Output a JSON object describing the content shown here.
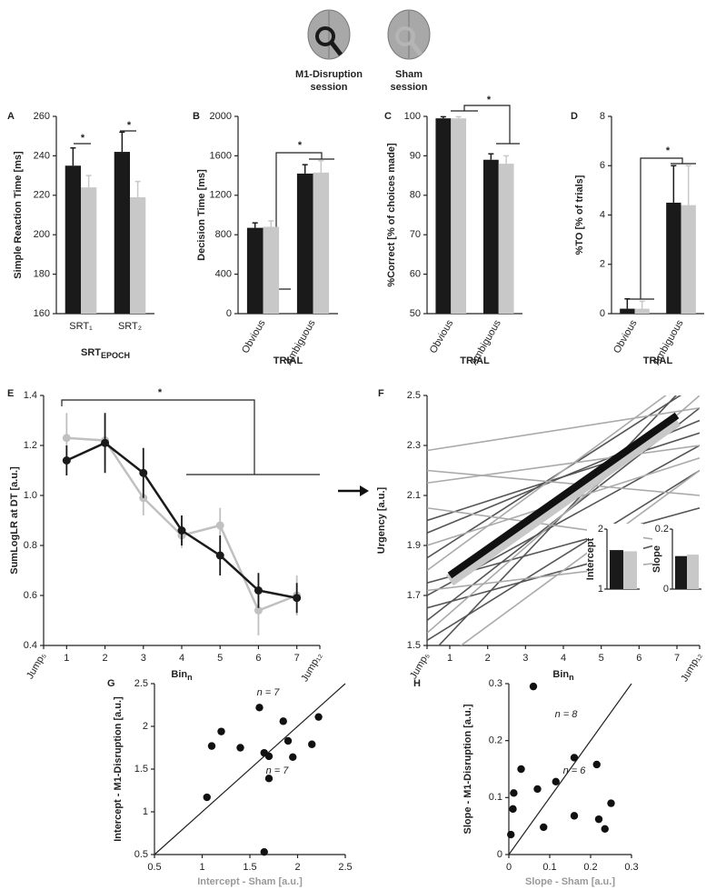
{
  "legend": {
    "items": [
      {
        "label_lines": [
          "M1-Disruption",
          "session"
        ],
        "color": "#1a1a1a"
      },
      {
        "label_lines": [
          "Sham",
          "session"
        ],
        "color": "#b5b5b5"
      }
    ]
  },
  "chart_data": [
    {
      "panel": "A",
      "type": "bar",
      "ylabel": "Simple Reaction Time [ms]",
      "xlabel": "SRT",
      "xlabel_sub": "EPOCH",
      "categories": [
        "SRT₁",
        "SRT₂"
      ],
      "ylim": [
        160,
        260
      ],
      "yticks": [
        160,
        180,
        200,
        220,
        240,
        260
      ],
      "series": [
        {
          "color": "#1a1a1a",
          "values": [
            235,
            242
          ],
          "errors": [
            9,
            10
          ]
        },
        {
          "color": "#c8c8c8",
          "values": [
            224,
            219
          ],
          "errors": [
            6,
            8
          ]
        }
      ],
      "annotations": [
        "*",
        "*"
      ]
    },
    {
      "panel": "B",
      "type": "bar",
      "ylabel": "Decision Time [ms]",
      "xlabel": "TRIAL",
      "categories": [
        "Obvious",
        "Ambiguous"
      ],
      "ylim": [
        0,
        2000
      ],
      "yticks": [
        0,
        400,
        800,
        1200,
        1600,
        2000
      ],
      "series": [
        {
          "color": "#1a1a1a",
          "values": [
            870,
            1420
          ],
          "errors": [
            50,
            90
          ]
        },
        {
          "color": "#c8c8c8",
          "values": [
            880,
            1430
          ],
          "errors": [
            60,
            120
          ]
        }
      ],
      "annotations": [
        "*"
      ]
    },
    {
      "panel": "C",
      "type": "bar",
      "ylabel": "%Correct [% of choices made]",
      "xlabel": "TRIAL",
      "categories": [
        "Obvious",
        "Ambiguous"
      ],
      "ylim": [
        50,
        100
      ],
      "yticks": [
        50,
        60,
        70,
        80,
        90,
        100
      ],
      "series": [
        {
          "color": "#1a1a1a",
          "values": [
            99.5,
            89
          ],
          "errors": [
            0.4,
            1.5
          ]
        },
        {
          "color": "#c8c8c8",
          "values": [
            99.5,
            88
          ],
          "errors": [
            0.4,
            2
          ]
        }
      ],
      "annotations": [
        "*"
      ]
    },
    {
      "panel": "D",
      "type": "bar",
      "ylabel": "%TO [% of trials]",
      "xlabel": "TRIAL",
      "categories": [
        "Obvious",
        "Ambiguous"
      ],
      "ylim": [
        0,
        8
      ],
      "yticks": [
        0,
        2,
        4,
        6,
        8
      ],
      "series": [
        {
          "color": "#1a1a1a",
          "values": [
            0.2,
            4.5
          ],
          "errors": [
            0.4,
            1.5
          ]
        },
        {
          "color": "#c8c8c8",
          "values": [
            0.2,
            4.4
          ],
          "errors": [
            0.3,
            1.6
          ]
        }
      ],
      "annotations": [
        "*"
      ]
    },
    {
      "panel": "E",
      "type": "line",
      "ylabel": "SumLogLR at DT [a.u.]",
      "xlabel": "Bin",
      "xlabel_sub": "n",
      "x": [
        1,
        2,
        3,
        4,
        5,
        6,
        7
      ],
      "xlim": [
        0.4,
        7.6
      ],
      "xticks": [
        {
          "value": 0.4,
          "label": "Jump₅"
        },
        1,
        2,
        3,
        4,
        5,
        6,
        7,
        {
          "value": 7.6,
          "label": "Jump₁₂"
        }
      ],
      "ylim": [
        0.4,
        1.4
      ],
      "yticks": [
        0.4,
        0.6,
        0.8,
        {
          "value": 1,
          "label": "1.0"
        },
        1.2,
        1.4
      ],
      "series": [
        {
          "color": "#1a1a1a",
          "values": [
            1.14,
            1.21,
            1.09,
            0.86,
            0.76,
            0.62,
            0.59
          ],
          "errors": [
            0.06,
            0.12,
            0.1,
            0.06,
            0.08,
            0.07,
            0.06
          ]
        },
        {
          "color": "#c0c0c0",
          "values": [
            1.23,
            1.22,
            0.99,
            0.84,
            0.88,
            0.54,
            0.6
          ],
          "errors": [
            0.1,
            0.1,
            0.07,
            0.05,
            0.07,
            0.1,
            0.08
          ]
        }
      ],
      "annotations": [
        "*"
      ]
    },
    {
      "panel": "F",
      "type": "lines",
      "ylabel": "Urgency [a.u.]",
      "xlabel": "Bin",
      "xlabel_sub": "n",
      "xlim": [
        0.4,
        7.6
      ],
      "xticks": [
        {
          "value": 0.4,
          "label": "Jump₅"
        },
        1,
        2,
        3,
        4,
        5,
        6,
        7,
        {
          "value": 7.6,
          "label": "Jump₁₂"
        }
      ],
      "ylim": [
        1.5,
        2.5
      ],
      "yticks": [
        1.5,
        1.7,
        1.9,
        2.1,
        2.3,
        2.5
      ],
      "subject_x": [
        0.4,
        7.6
      ],
      "subjects": [
        {
          "color": "#555555",
          "values": [
            1.6,
            2.45
          ]
        },
        {
          "color": "#555555",
          "values": [
            1.7,
            2.3
          ]
        },
        {
          "color": "#555555",
          "values": [
            1.85,
            2.55
          ]
        },
        {
          "color": "#555555",
          "values": [
            1.52,
            2.2
          ]
        },
        {
          "color": "#555555",
          "values": [
            1.95,
            2.4
          ]
        },
        {
          "color": "#555555",
          "values": [
            1.45,
            2.6
          ]
        },
        {
          "color": "#555555",
          "values": [
            1.75,
            2.05
          ]
        },
        {
          "color": "#555555",
          "values": [
            2.0,
            2.35
          ]
        },
        {
          "color": "#555555",
          "values": [
            1.65,
            1.95
          ]
        },
        {
          "color": "#aaaaaa",
          "values": [
            2.28,
            2.45
          ]
        },
        {
          "color": "#aaaaaa",
          "values": [
            2.2,
            2.1
          ]
        },
        {
          "color": "#aaaaaa",
          "values": [
            1.9,
            2.25
          ]
        },
        {
          "color": "#aaaaaa",
          "values": [
            1.55,
            2.5
          ]
        },
        {
          "color": "#aaaaaa",
          "values": [
            2.05,
            1.9
          ]
        },
        {
          "color": "#aaaaaa",
          "values": [
            1.8,
            2.6
          ]
        },
        {
          "color": "#aaaaaa",
          "values": [
            1.72,
            1.85
          ]
        },
        {
          "color": "#aaaaaa",
          "values": [
            2.15,
            2.3
          ]
        },
        {
          "color": "#aaaaaa",
          "values": [
            1.4,
            2.2
          ]
        }
      ],
      "x": [
        1,
        7
      ],
      "series": [
        {
          "color": "#c8c8c8",
          "values": [
            1.76,
            2.4
          ]
        },
        {
          "color": "#111111",
          "values": [
            1.78,
            2.42
          ]
        }
      ],
      "insets": [
        {
          "ylabel": "Intercept",
          "ylim": [
            1,
            2
          ],
          "yticks": [
            1,
            2
          ],
          "values": [
            1.65,
            1.63
          ],
          "colors": [
            "#1a1a1a",
            "#c8c8c8"
          ]
        },
        {
          "ylabel": "Slope",
          "ylim": [
            0,
            0.2
          ],
          "yticks": [
            0,
            0.2
          ],
          "values": [
            0.11,
            0.115
          ],
          "colors": [
            "#1a1a1a",
            "#c8c8c8"
          ]
        }
      ]
    },
    {
      "panel": "G",
      "type": "scatter",
      "ylabel": "Intercept - M1-Disruption [a.u.]",
      "xlabel": "Intercept - Sham [a.u.]",
      "xlim": [
        0.5,
        2.5
      ],
      "xticks": [
        0.5,
        1,
        1.5,
        2,
        2.5
      ],
      "ylim": [
        0.5,
        2.5
      ],
      "yticks": [
        0.5,
        1,
        1.5,
        2,
        2.5
      ],
      "x": [
        1.05,
        1.1,
        1.2,
        1.4,
        1.6,
        1.65,
        1.7,
        1.7,
        1.85,
        1.9,
        1.95,
        2.15,
        2.22,
        1.65
      ],
      "values": [
        1.17,
        1.77,
        1.94,
        1.75,
        2.22,
        1.69,
        1.65,
        1.39,
        2.06,
        1.83,
        1.64,
        1.79,
        2.11,
        0.53
      ],
      "color": "#111111",
      "annotations": [
        "n = 7",
        "n = 7"
      ]
    },
    {
      "panel": "H",
      "type": "scatter",
      "ylabel": "Slope - M1-Disruption [a.u.]",
      "xlabel": "Slope - Sham [a.u.]",
      "xlim": [
        0,
        0.3
      ],
      "xticks": [
        0,
        0.1,
        0.2,
        0.3
      ],
      "ylim": [
        0,
        0.3
      ],
      "yticks": [
        0,
        0.1,
        0.2,
        0.3
      ],
      "x": [
        0.005,
        0.01,
        0.012,
        0.03,
        0.06,
        0.07,
        0.085,
        0.115,
        0.16,
        0.16,
        0.215,
        0.22,
        0.235,
        0.25
      ],
      "values": [
        0.035,
        0.08,
        0.108,
        0.15,
        0.295,
        0.115,
        0.048,
        0.128,
        0.17,
        0.068,
        0.158,
        0.062,
        0.045,
        0.09
      ],
      "color": "#111111",
      "annotations": [
        "n = 8",
        "n = 6"
      ]
    }
  ]
}
